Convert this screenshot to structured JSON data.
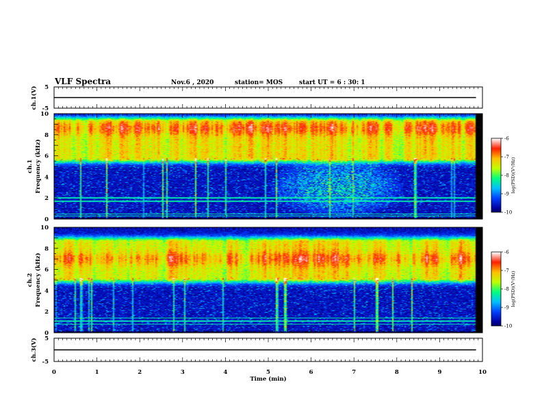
{
  "header": {
    "title": "VLF Spectra",
    "date": "Nov.6 , 2020",
    "station": "station= MOS",
    "start_ut": "start UT = 6 : 30: 1"
  },
  "colors": {
    "colormap": [
      "#000000",
      "#0000a0",
      "#0040ff",
      "#00c0ff",
      "#00ff80",
      "#c0ff00",
      "#ffc000",
      "#ff2000",
      "#ffffff"
    ],
    "trace": "#000000"
  },
  "chart_data": [
    {
      "type": "line",
      "panel": "ch1-voltage",
      "ylabel": "ch.1(V)",
      "ylim": [
        -5,
        5
      ],
      "yticks": [
        "5",
        "-5"
      ],
      "x": [
        0,
        9.85
      ],
      "values": [
        0,
        0
      ]
    },
    {
      "type": "heatmap",
      "panel": "ch1-spectrogram",
      "ylabel": "ch.1\nFrequency (kHz)",
      "ylim": [
        0,
        10
      ],
      "yticks": [
        "0",
        "2",
        "4",
        "6",
        "8",
        "10"
      ],
      "xlim": [
        0,
        9.85
      ],
      "colorbar": {
        "label": "log(PSD)(V²/Hz)",
        "range": [
          -10,
          -6
        ],
        "ticks": [
          "-6",
          "-7",
          "-8",
          "-9",
          "-10"
        ]
      },
      "features": {
        "main_band_khz": [
          5.8,
          9.2
        ],
        "main_band_peak_khz": 8.6,
        "hiss_region": {
          "time_min": [
            5.2,
            8.0
          ],
          "freq_khz": [
            0.5,
            5.5
          ]
        },
        "lines_khz": [
          0.3,
          0.5,
          1.7,
          2.0
        ]
      }
    },
    {
      "type": "heatmap",
      "panel": "ch2-spectrogram",
      "ylabel": "ch.2\nFrequency (kHz)",
      "ylim": [
        0,
        10
      ],
      "yticks": [
        "0",
        "2",
        "4",
        "6",
        "8",
        "10"
      ],
      "xlim": [
        0,
        9.85
      ],
      "colorbar": {
        "label": "log(PSD)(V²/Hz)",
        "range": [
          -10,
          -6
        ],
        "ticks": [
          "-6",
          "-7",
          "-8",
          "-9",
          "-10"
        ]
      },
      "features": {
        "main_band_khz": [
          5.2,
          8.6
        ],
        "main_band_peak_khz": 7.0,
        "lines_khz": [
          0.8,
          1.1,
          1.4
        ]
      }
    },
    {
      "type": "line",
      "panel": "ch3-voltage",
      "ylabel": "ch.3(V)",
      "ylim": [
        -5,
        5
      ],
      "yticks": [
        "5",
        "-5"
      ],
      "x": [
        0,
        9.85
      ],
      "values": [
        0,
        0
      ]
    }
  ],
  "xaxis": {
    "label": "Time (min)",
    "range": [
      0,
      10
    ],
    "ticks": [
      "0",
      "1",
      "2",
      "3",
      "4",
      "5",
      "6",
      "7",
      "8",
      "9",
      "10"
    ]
  }
}
